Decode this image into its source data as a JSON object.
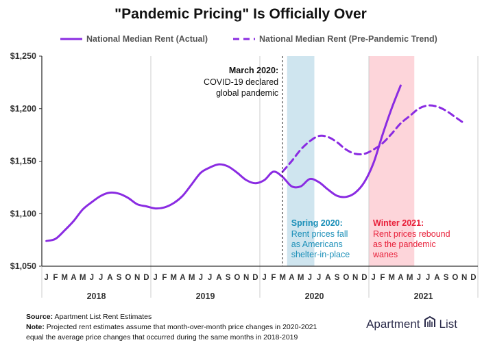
{
  "colors": {
    "actual": "#8a2be2",
    "spring_band": "#cfe5ef",
    "winter_band": "#fdd5da",
    "spring_text": "#1b8fb8",
    "winter_text": "#e8203a",
    "grid": "#cccccc"
  },
  "chart_data": {
    "type": "line",
    "title": "\"Pandemic Pricing\" Is Officially Over",
    "ylim": [
      1050,
      1250
    ],
    "yticks": [
      1050,
      1100,
      1150,
      1200,
      1250
    ],
    "ytick_labels": [
      "$1,050",
      "$1,100",
      "$1,150",
      "$1,200",
      "$1,250"
    ],
    "x_month_labels": [
      "J",
      "F",
      "M",
      "A",
      "M",
      "J",
      "J",
      "A",
      "S",
      "O",
      "N",
      "D",
      "J",
      "F",
      "M",
      "A",
      "M",
      "J",
      "J",
      "A",
      "S",
      "O",
      "N",
      "D",
      "J",
      "F",
      "M",
      "A",
      "M",
      "J",
      "J",
      "A",
      "S",
      "O",
      "N",
      "D",
      "J",
      "F",
      "M",
      "A",
      "M",
      "J",
      "J",
      "A",
      "S",
      "O",
      "N",
      "D"
    ],
    "years": [
      "2018",
      "2019",
      "2020",
      "2021"
    ],
    "grid": "vertical lines at year boundaries",
    "legend_position": "top",
    "series": [
      {
        "name": "National Median Rent (Actual)",
        "style": "solid",
        "start": "2018-01",
        "values": [
          1074,
          1076,
          1084,
          1093,
          1104,
          1111,
          1117,
          1120,
          1119,
          1115,
          1109,
          1107,
          1105,
          1106,
          1110,
          1117,
          1128,
          1139,
          1144,
          1147,
          1145,
          1139,
          1132,
          1129,
          1132,
          1140,
          1135,
          1126,
          1126,
          1133,
          1130,
          1123,
          1117,
          1116,
          1120,
          1130,
          1148,
          1175,
          1200,
          1222
        ]
      },
      {
        "name": "National Median Rent (Pre-Pandemic Trend)",
        "style": "dashed",
        "start": "2020-03",
        "values": [
          1140,
          1150,
          1161,
          1169,
          1174,
          1173,
          1168,
          1161,
          1157,
          1157,
          1161,
          1167,
          1176,
          1186,
          1193,
          1200,
          1203,
          1202,
          1198,
          1192,
          1186
        ]
      }
    ],
    "annotations": [
      {
        "id": "march",
        "heading": "March 2020:",
        "lines": [
          "COVID-19 declared",
          "global pandemic"
        ],
        "at": "2020-03"
      },
      {
        "id": "spring",
        "heading": "Spring 2020:",
        "lines": [
          "Rent prices fall",
          "as Americans",
          "shelter-in-place"
        ],
        "band": [
          "2020-04",
          "2020-06"
        ]
      },
      {
        "id": "winter",
        "heading": "Winter 2021:",
        "lines": [
          "Rent prices rebound",
          "as the pandemic",
          "wanes"
        ],
        "band": [
          "2021-01",
          "2021-05"
        ]
      }
    ]
  },
  "footer": {
    "source_label": "Source:",
    "source_text": "Apartment List Rent Estimates",
    "note_label": "Note:",
    "note_line1": "Projected rent estimates assume that month-over-month price changes in 2020-2021",
    "note_line2": "equal the average price changes that occurred during the same months in 2018-2019"
  },
  "brand": {
    "word1": "Apartment",
    "word2": "List",
    "mark_icon": "apartment-list-logo-icon"
  }
}
